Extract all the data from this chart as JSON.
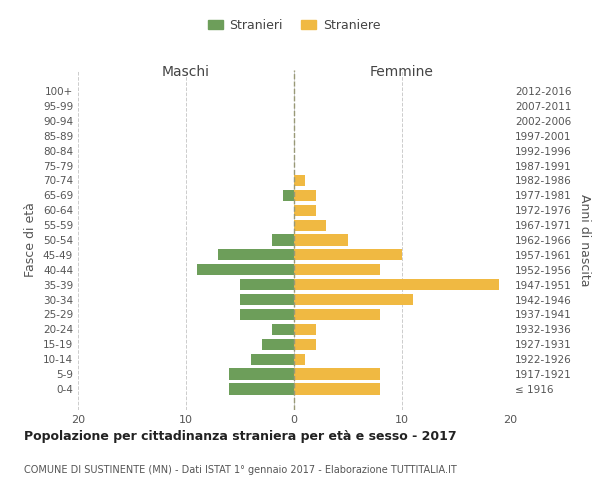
{
  "age_groups": [
    "100+",
    "95-99",
    "90-94",
    "85-89",
    "80-84",
    "75-79",
    "70-74",
    "65-69",
    "60-64",
    "55-59",
    "50-54",
    "45-49",
    "40-44",
    "35-39",
    "30-34",
    "25-29",
    "20-24",
    "15-19",
    "10-14",
    "5-9",
    "0-4"
  ],
  "birth_years": [
    "≤ 1916",
    "1917-1921",
    "1922-1926",
    "1927-1931",
    "1932-1936",
    "1937-1941",
    "1942-1946",
    "1947-1951",
    "1952-1956",
    "1957-1961",
    "1962-1966",
    "1967-1971",
    "1972-1976",
    "1977-1981",
    "1982-1986",
    "1987-1991",
    "1992-1996",
    "1997-2001",
    "2002-2006",
    "2007-2011",
    "2012-2016"
  ],
  "stranieri": [
    0,
    0,
    0,
    0,
    0,
    0,
    0,
    1,
    0,
    0,
    2,
    7,
    9,
    5,
    5,
    5,
    2,
    3,
    4,
    6,
    6
  ],
  "straniere": [
    0,
    0,
    0,
    0,
    0,
    0,
    1,
    2,
    2,
    3,
    5,
    10,
    8,
    19,
    11,
    8,
    2,
    2,
    1,
    8,
    8
  ],
  "stranieri_color": "#6d9e5a",
  "straniere_color": "#f0b942",
  "background_color": "#ffffff",
  "grid_color": "#cccccc",
  "title": "Popolazione per cittadinanza straniera per età e sesso - 2017",
  "subtitle": "COMUNE DI SUSTINENTE (MN) - Dati ISTAT 1° gennaio 2017 - Elaborazione TUTTITALIA.IT",
  "xlabel_left": "Maschi",
  "xlabel_right": "Femmine",
  "ylabel_left": "Fasce di età",
  "ylabel_right": "Anni di nascita",
  "xlim": 20,
  "legend_stranieri": "Stranieri",
  "legend_straniere": "Straniere"
}
